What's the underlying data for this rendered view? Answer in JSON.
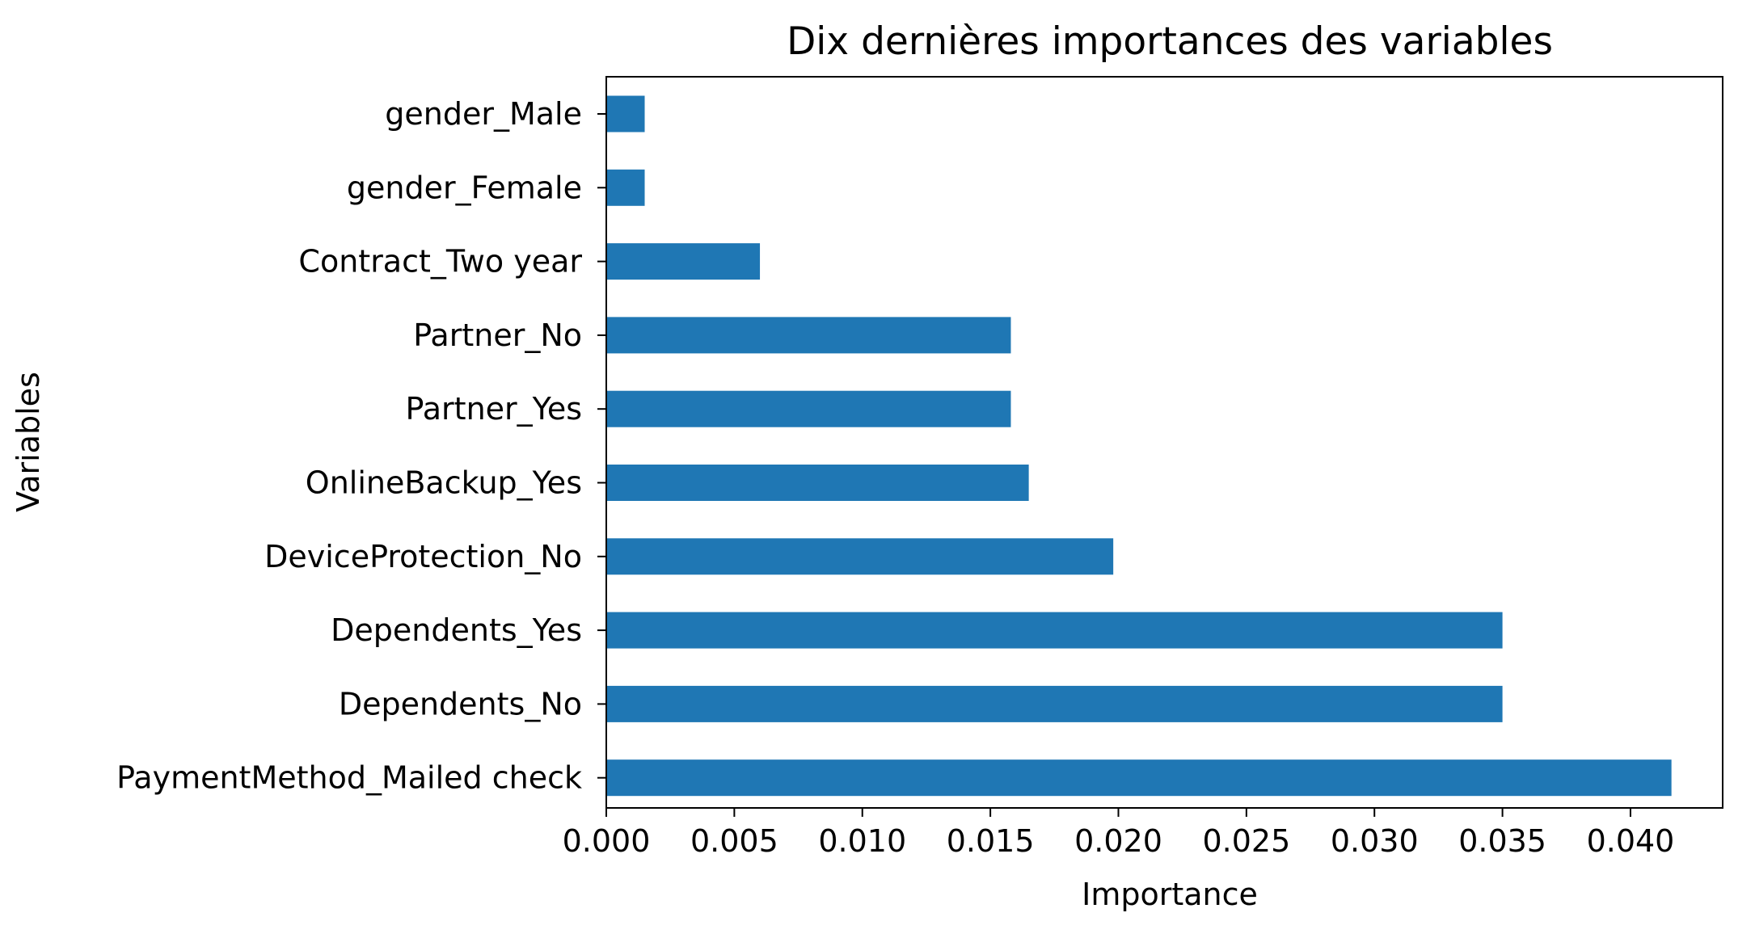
{
  "chart_data": {
    "type": "bar",
    "orientation": "horizontal",
    "title": "Dix dernières importances des variables",
    "xlabel": "Importance",
    "ylabel": "Variables",
    "categories": [
      "gender_Male",
      "gender_Female",
      "Contract_Two year",
      "Partner_No",
      "Partner_Yes",
      "OnlineBackup_Yes",
      "DeviceProtection_No",
      "Dependents_Yes",
      "Dependents_No",
      "PaymentMethod_Mailed check"
    ],
    "values": [
      0.0015,
      0.0015,
      0.006,
      0.0158,
      0.0158,
      0.0165,
      0.0198,
      0.035,
      0.035,
      0.0416
    ],
    "xlim": [
      0,
      0.0436
    ],
    "xticks": [
      0.0,
      0.005,
      0.01,
      0.015,
      0.02,
      0.025,
      0.03,
      0.035,
      0.04
    ],
    "xtick_labels": [
      "0.000",
      "0.005",
      "0.010",
      "0.015",
      "0.020",
      "0.025",
      "0.030",
      "0.035",
      "0.040"
    ],
    "grid": false,
    "legend": "none",
    "bar_color": "#1f77b4"
  }
}
